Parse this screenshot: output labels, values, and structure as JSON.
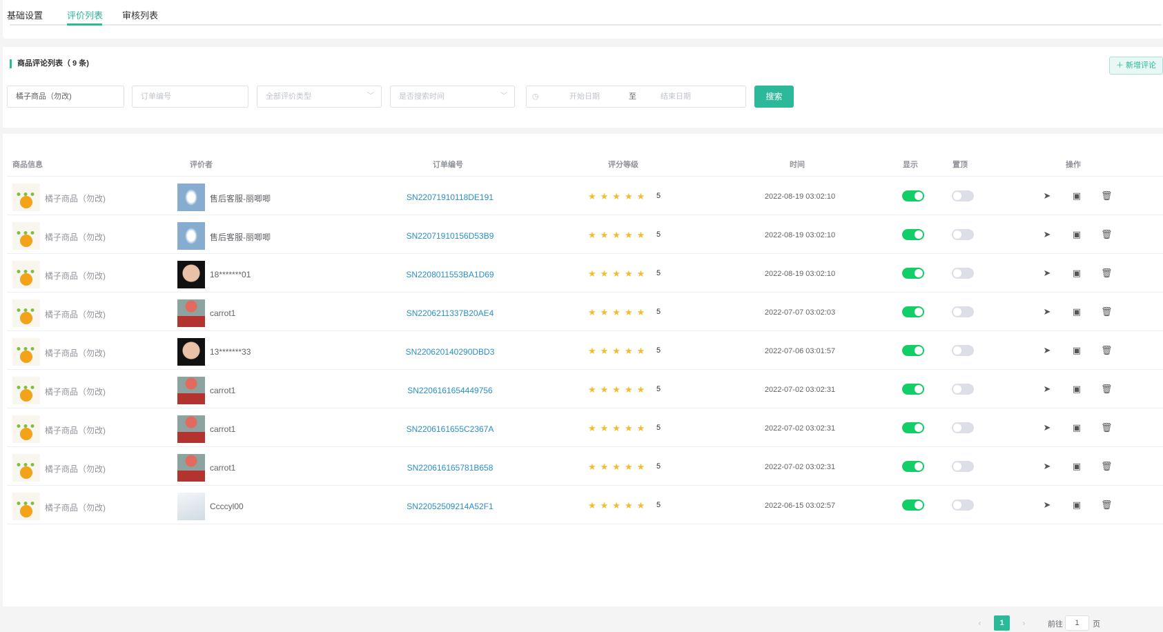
{
  "tabs": [
    {
      "label": "基础设置"
    },
    {
      "label": "评价列表"
    },
    {
      "label": "审核列表"
    }
  ],
  "active_tab": 1,
  "list": {
    "title": "商品评论列表（ 9 条)",
    "add_button": "＋ 新增评论"
  },
  "filters": {
    "product_value": "橘子商品（勿改)",
    "order_placeholder": "订单编号",
    "type_placeholder": "全部评价类型",
    "time_placeholder": "是否搜索时间",
    "start_placeholder": "开始日期",
    "range_sep": "至",
    "end_placeholder": "结束日期",
    "search_button": "搜索"
  },
  "table": {
    "headers": [
      "商品信息",
      "评价者",
      "订单编号",
      "评分等级",
      "时间",
      "显示",
      "置顶",
      "操作"
    ],
    "rows": [
      {
        "product": "橘子商品（勿改)",
        "reviewer": "售后客服-丽唧唧",
        "avatar": "cloud",
        "order": "SN22071910118DE191",
        "stars": "★★★★★",
        "score": "5",
        "time": "2022-08-19 03:02:10",
        "show": true,
        "top": false
      },
      {
        "product": "橘子商品（勿改)",
        "reviewer": "售后客服-丽唧唧",
        "avatar": "cloud",
        "order": "SN22071910156D53B9",
        "stars": "★★★★★",
        "score": "5",
        "time": "2022-08-19 03:02:10",
        "show": true,
        "top": false
      },
      {
        "product": "橘子商品（勿改)",
        "reviewer": "18*******01",
        "avatar": "bald",
        "order": "SN2208011553BA1D69",
        "stars": "★★★★★",
        "score": "5",
        "time": "2022-08-19 03:02:10",
        "show": true,
        "top": false
      },
      {
        "product": "橘子商品（勿改)",
        "reviewer": "carrot1",
        "avatar": "carrot",
        "order": "SN2206211337B20AE4",
        "stars": "★★★★★",
        "score": "5",
        "time": "2022-07-07 03:02:03",
        "show": true,
        "top": false
      },
      {
        "product": "橘子商品（勿改)",
        "reviewer": "13*******33",
        "avatar": "bald",
        "order": "SN220620140290DBD3",
        "stars": "★★★★★",
        "score": "5",
        "time": "2022-07-06 03:01:57",
        "show": true,
        "top": false
      },
      {
        "product": "橘子商品（勿改)",
        "reviewer": "carrot1",
        "avatar": "carrot",
        "order": "SN2206161654449756",
        "stars": "★★★★★",
        "score": "5",
        "time": "2022-07-02 03:02:31",
        "show": true,
        "top": false
      },
      {
        "product": "橘子商品（勿改)",
        "reviewer": "carrot1",
        "avatar": "carrot",
        "order": "SN2206161655C2367A",
        "stars": "★★★★★",
        "score": "5",
        "time": "2022-07-02 03:02:31",
        "show": true,
        "top": false
      },
      {
        "product": "橘子商品（勿改)",
        "reviewer": "carrot1",
        "avatar": "carrot",
        "order": "SN220616165781B658",
        "stars": "★★★★★",
        "score": "5",
        "time": "2022-07-02 03:02:31",
        "show": true,
        "top": false
      },
      {
        "product": "橘子商品（勿改)",
        "reviewer": "Ccccyl00",
        "avatar": "ph",
        "order": "SN22052509214A52F1",
        "stars": "★★★★★",
        "score": "5",
        "time": "2022-06-15 03:02:57",
        "show": true,
        "top": false
      }
    ],
    "actions": [
      {
        "icon": "send-icon",
        "glyph": "➤"
      },
      {
        "icon": "file-add-icon",
        "glyph": "▣"
      },
      {
        "icon": "trash-icon",
        "glyph": "🗑"
      }
    ]
  },
  "pagination": {
    "prev": "‹",
    "current": "1",
    "next": "›",
    "goto_label": "前往",
    "goto_value": "1",
    "page_suffix": "页"
  },
  "colors": {
    "accent": "#2bb99a",
    "switch_on": "#13ce66",
    "star": "#f7ba2a",
    "link": "#2b8fc9"
  }
}
